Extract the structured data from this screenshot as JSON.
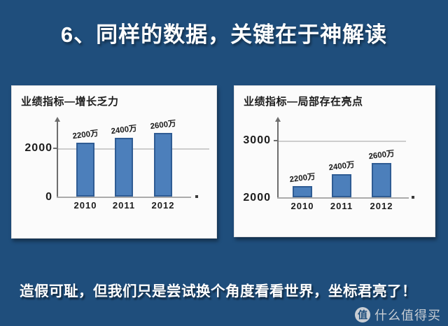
{
  "slide": {
    "title": "6、同样的数据，关键在于神解读",
    "footer": "造假可耻，但我们只是尝试换个角度看看世界，坐标君亮了！"
  },
  "watermark": {
    "icon_char": "值",
    "label": "什么值得买"
  },
  "colors": {
    "background": "#1F4E7C",
    "panel": "#FBFBFB",
    "bar_fill": "#4C7FBB",
    "bar_border": "#2F5C94",
    "gridline": "#CDCDCD",
    "axis": "#6E6E6E",
    "chart_text": "#1C1C1C",
    "watermark_text": "#C9CED4"
  },
  "chart_data": [
    {
      "type": "bar",
      "title": "业绩指标—增长乏力",
      "categories": [
        "2010",
        "2011",
        "2012"
      ],
      "values": [
        2200,
        2400,
        2600
      ],
      "bar_labels": [
        "2200万",
        "2400万",
        "2600万"
      ],
      "yticks": [
        "2000",
        "0"
      ],
      "ylim": [
        0,
        2800
      ],
      "gridline_value": 2000,
      "xlabel": "",
      "ylabel": "",
      "legend": "none",
      "grid": "single-horizontal"
    },
    {
      "type": "bar",
      "title": "业绩指标—局部存在亮点",
      "categories": [
        "2010",
        "2011",
        "2012"
      ],
      "values": [
        2200,
        2400,
        2600
      ],
      "bar_labels": [
        "2200万",
        "2400万",
        "2600万"
      ],
      "yticks": [
        "3000",
        "2000"
      ],
      "ylim": [
        2000,
        3000
      ],
      "gridline_value": 3000,
      "xlabel": "",
      "ylabel": "",
      "legend": "none",
      "grid": "single-horizontal"
    }
  ]
}
